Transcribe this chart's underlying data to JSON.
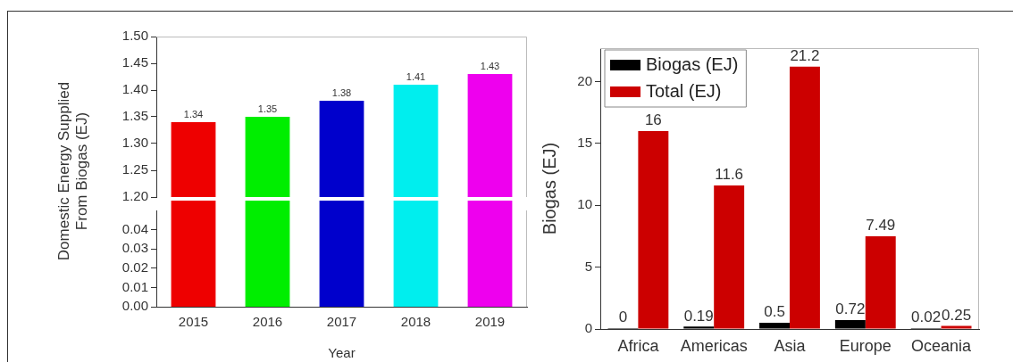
{
  "chart_data": [
    {
      "type": "bar",
      "ylabel": "Domestic Energy Supplied From Biogas (EJ)",
      "categories": [
        "2015",
        "2016",
        "2017",
        "2018",
        "2019"
      ],
      "values": [
        1.34,
        1.35,
        1.38,
        1.41,
        1.43
      ],
      "colors": [
        "#ee0000",
        "#00ee00",
        "#0000cc",
        "#00eeee",
        "#ee00ee"
      ],
      "ylim": [
        1.2,
        1.5
      ],
      "yticks": [
        {
          "value": 1.2,
          "label": "1.20"
        },
        {
          "value": 1.25,
          "label": "1.25"
        },
        {
          "value": 1.3,
          "label": "1.30"
        },
        {
          "value": 1.35,
          "label": "1.35"
        },
        {
          "value": 1.4,
          "label": "1.40"
        },
        {
          "value": 1.45,
          "label": "1.45"
        },
        {
          "value": 1.5,
          "label": "1.50"
        }
      ],
      "tick_labels": "y",
      "data_labels": true,
      "grid": false,
      "legend": false
    },
    {
      "type": "bar",
      "xlabel": "Year",
      "categories": [
        "2015",
        "2016",
        "2017",
        "2018",
        "2019"
      ],
      "values": [
        null,
        null,
        null,
        null,
        null
      ],
      "ylim": [
        0,
        0.05
      ],
      "yticks": [
        {
          "value": 0,
          "label": "0.00"
        },
        {
          "value": 0.01,
          "label": "0.01"
        },
        {
          "value": 0.02,
          "label": "0.02"
        },
        {
          "value": 0.03,
          "label": "0.03"
        },
        {
          "value": 0.04,
          "label": "0.04"
        }
      ],
      "grid": false,
      "legend": false
    },
    {
      "type": "bar",
      "ylabel": "Biogas (EJ)",
      "categories": [
        "Africa",
        "Americas",
        "Asia",
        "Europe",
        "Oceania"
      ],
      "series": [
        {
          "name": "Biogas (EJ)",
          "color": "#000000",
          "values": [
            0,
            0.19,
            0.5,
            0.72,
            0.02
          ]
        },
        {
          "name": "Total (EJ)",
          "color": "#cc0000",
          "values": [
            16,
            11.6,
            21.2,
            7.49,
            0.25
          ]
        }
      ],
      "ylim": [
        0,
        22.7
      ],
      "yticks": [
        0,
        5,
        10,
        15,
        20
      ],
      "data_labels": true,
      "grid": false,
      "legend": "top left"
    }
  ]
}
